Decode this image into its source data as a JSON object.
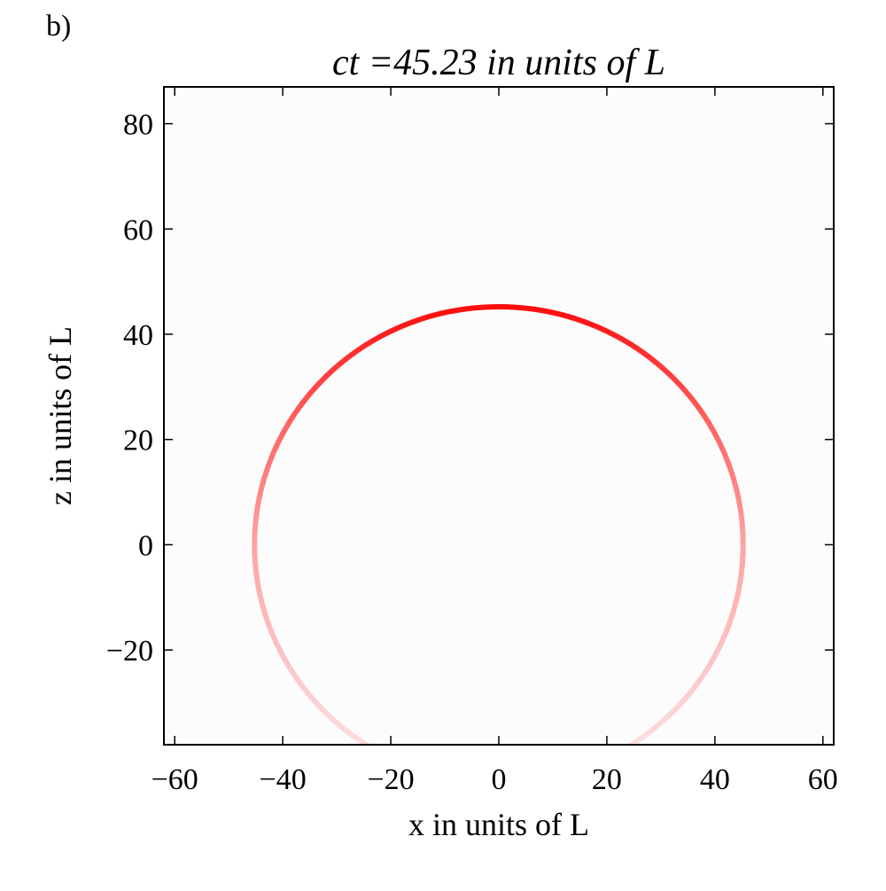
{
  "chart_data": {
    "type": "ring",
    "panel_label": "b)",
    "title": "ct =45.23 in units of L",
    "x_label": "x in units of L",
    "y_label": "z in units of L",
    "xlim": [
      -62,
      62
    ],
    "ylim": [
      -38,
      87
    ],
    "xticks": [
      {
        "value": -60,
        "label": "−60"
      },
      {
        "value": -40,
        "label": "−40"
      },
      {
        "value": -20,
        "label": "−20"
      },
      0,
      20,
      40,
      60
    ],
    "yticks": [
      {
        "value": -20,
        "label": "−20"
      },
      0,
      20,
      40,
      60,
      80
    ],
    "ring": {
      "x": 0,
      "z": 0,
      "radius": 45.23
    },
    "color": "#ff0000"
  }
}
